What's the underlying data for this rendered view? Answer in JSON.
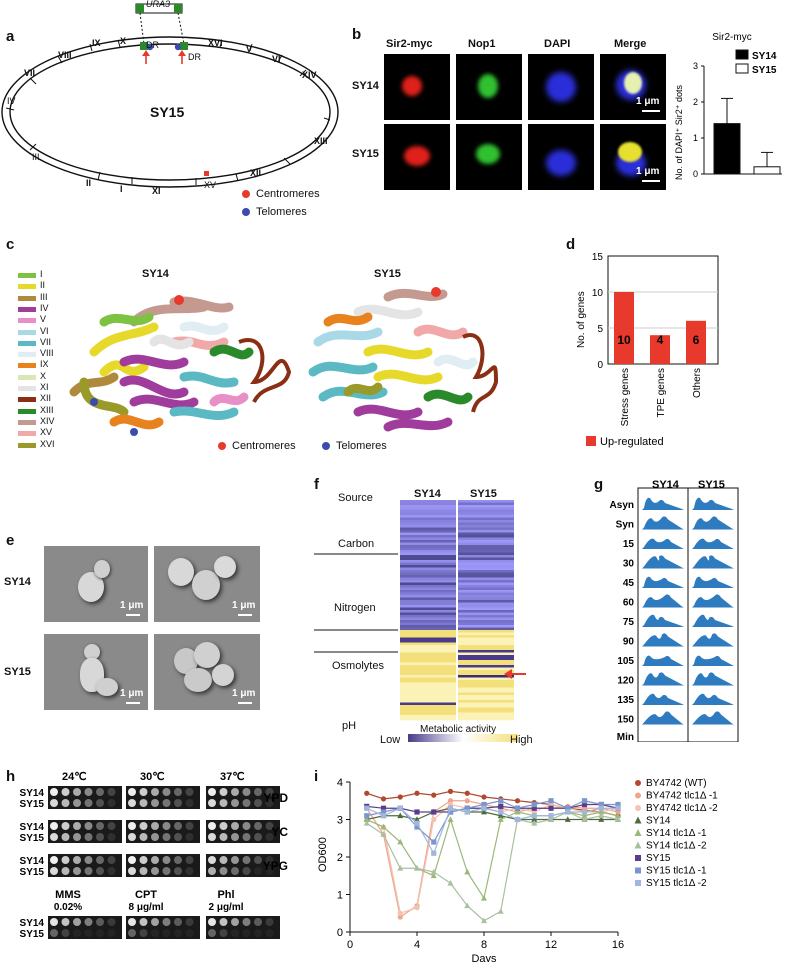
{
  "panels": {
    "a": "a",
    "b": "b",
    "c": "c",
    "d": "d",
    "e": "e",
    "f": "f",
    "g": "g",
    "h": "h",
    "i": "i"
  },
  "panel_a": {
    "center_label": "SY15",
    "insert_label": "URA3",
    "dr_left": "DR",
    "dr_right": "DR",
    "chromosomes": [
      "VII",
      "VIII",
      "IX",
      "X",
      "XVI",
      "V",
      "VI",
      "XIV",
      "IV",
      "III",
      "II",
      "I",
      "XI",
      "XV",
      "XII",
      "XIII"
    ],
    "legend": [
      {
        "label": "Centromeres",
        "color": "#e8392d"
      },
      {
        "label": "Telomeres",
        "color": "#3b4bb0"
      }
    ]
  },
  "panel_b": {
    "columns": [
      "Sir2-myc",
      "Nop1",
      "DAPI",
      "Merge"
    ],
    "rows": [
      "SY14",
      "SY15"
    ],
    "scale": "1 μm",
    "chart_data": {
      "type": "bar",
      "title": "Sir2-myc",
      "ylabel": "No. of DAPI⁺ Sir2⁺ dots",
      "categories": [
        "SY14",
        "SY15"
      ],
      "values": [
        1.4,
        0.2
      ],
      "errors": [
        0.7,
        0.4
      ],
      "ylim": [
        0,
        3
      ],
      "yticks": [
        "0",
        "1",
        "2",
        "3"
      ],
      "legend": [
        {
          "name": "SY14",
          "color": "#000000"
        },
        {
          "name": "SY15",
          "color": "#ffffff"
        }
      ]
    }
  },
  "panel_c": {
    "titles": [
      "SY14",
      "SY15"
    ],
    "legend": [
      {
        "label": "I",
        "color": "#7dc242"
      },
      {
        "label": "II",
        "color": "#e6d92a"
      },
      {
        "label": "III",
        "color": "#b08a3c"
      },
      {
        "label": "IV",
        "color": "#a03c9c"
      },
      {
        "label": "V",
        "color": "#e88fc8"
      },
      {
        "label": "VI",
        "color": "#a9d8e6"
      },
      {
        "label": "VII",
        "color": "#5ab9c2"
      },
      {
        "label": "VIII",
        "color": "#e0eef4"
      },
      {
        "label": "IX",
        "color": "#e8821e"
      },
      {
        "label": "X",
        "color": "#d6e8b4"
      },
      {
        "label": "XI",
        "color": "#e4e4e4"
      },
      {
        "label": "XII",
        "color": "#8a2e14"
      },
      {
        "label": "XIII",
        "color": "#2a8a2a"
      },
      {
        "label": "XIV",
        "color": "#c49a90"
      },
      {
        "label": "XV",
        "color": "#f0a8a8"
      },
      {
        "label": "XVI",
        "color": "#9a9a2a"
      }
    ],
    "legend_bottom": [
      {
        "label": "Centromeres",
        "color": "#e8392d"
      },
      {
        "label": "Telomeres",
        "color": "#3b4bb0"
      }
    ]
  },
  "panel_d": {
    "chart_data": {
      "type": "bar",
      "ylabel": "No. of  genes",
      "categories": [
        "Stress genes",
        "TPE genes",
        "Others"
      ],
      "values": [
        10,
        4,
        6
      ],
      "ylim": [
        0,
        15
      ],
      "yticks": [
        "0",
        "5",
        "10",
        "15"
      ],
      "legend": "Up-regulated",
      "color": "#e8392d"
    }
  },
  "panel_e": {
    "rows": [
      "SY14",
      "SY15"
    ],
    "scale": "1 μm"
  },
  "panel_f": {
    "columns": [
      "SY14",
      "SY15"
    ],
    "groups": [
      "Source",
      "Carbon",
      "Nitrogen",
      "Osmolytes",
      "pH"
    ],
    "scale_title": "Metabolic activity",
    "scale_low": "Low",
    "scale_high": "High"
  },
  "panel_g": {
    "columns": [
      "SY14",
      "SY15"
    ],
    "rows": [
      "Asyn",
      "Syn",
      "15",
      "30",
      "45",
      "60",
      "75",
      "90",
      "105",
      "120",
      "135",
      "150"
    ],
    "unit": "Min",
    "color": "#2e7bbf"
  },
  "panel_h": {
    "temps": [
      "24℃",
      "30℃",
      "37℃"
    ],
    "media": [
      "YPD",
      "YC",
      "YPG"
    ],
    "strains": [
      "SY14",
      "SY15"
    ],
    "drugs": [
      {
        "name": "MMS",
        "dose": "0.02%"
      },
      {
        "name": "CPT",
        "dose": "8 μg/ml"
      },
      {
        "name": "Phl",
        "dose": "2 μg/ml"
      }
    ]
  },
  "panel_i": {
    "chart_data": {
      "type": "line",
      "xlabel": "Days",
      "ylabel": "OD600",
      "xlim": [
        0,
        16
      ],
      "ylim": [
        0,
        4
      ],
      "xticks": [
        "0",
        "4",
        "8",
        "12",
        "16"
      ],
      "yticks": [
        "0",
        "1",
        "2",
        "3",
        "4"
      ],
      "series": [
        {
          "name": "BY4742 (WT)",
          "color": "#b0492e",
          "marker": "circle",
          "x": [
            1,
            2,
            3,
            4,
            5,
            6,
            7,
            8,
            9,
            10,
            11,
            12,
            13,
            14,
            15,
            16
          ],
          "y": [
            3.7,
            3.55,
            3.6,
            3.7,
            3.65,
            3.75,
            3.7,
            3.6,
            3.55,
            3.5,
            3.45,
            3.4,
            3.3,
            3.25,
            3.2,
            3.1
          ]
        },
        {
          "name": "BY4742 tlc1Δ -1",
          "color": "#f0a58a",
          "marker": "circle",
          "x": [
            1,
            2,
            3,
            4,
            5,
            6,
            7,
            8,
            9,
            10,
            11,
            12,
            13,
            14,
            15,
            16
          ],
          "y": [
            3.3,
            2.6,
            0.4,
            0.7,
            3.2,
            3.5,
            3.5,
            3.4,
            3.3,
            3.2,
            3.3,
            3.3,
            3.35,
            3.3,
            3.3,
            3.2
          ]
        },
        {
          "name": "BY4742 tlc1Δ -2",
          "color": "#f4c2b0",
          "marker": "circle",
          "x": [
            1,
            2,
            3,
            4,
            5,
            6,
            7,
            8,
            9,
            10,
            11,
            12,
            13,
            14,
            15,
            16
          ],
          "y": [
            3.0,
            2.8,
            0.5,
            0.65,
            3.0,
            3.4,
            3.3,
            3.3,
            3.2,
            3.3,
            3.2,
            3.4,
            3.3,
            3.2,
            3.2,
            3.3
          ]
        },
        {
          "name": "SY14",
          "color": "#4e6b3c",
          "marker": "triangle",
          "x": [
            1,
            2,
            3,
            4,
            5,
            6,
            7,
            8,
            9,
            10,
            11,
            12,
            13,
            14,
            15,
            16
          ],
          "y": [
            3.0,
            3.1,
            3.1,
            3.0,
            3.2,
            3.3,
            3.2,
            3.2,
            3.1,
            3.0,
            3.0,
            3.0,
            3.0,
            3.0,
            3.0,
            3.0
          ]
        },
        {
          "name": "SY14 tlc1Δ -1",
          "color": "#9ab87a",
          "marker": "triangle",
          "x": [
            1,
            2,
            3,
            4,
            5,
            6,
            7,
            8,
            9,
            10,
            11,
            12,
            13,
            14,
            15,
            16
          ],
          "y": [
            3.0,
            2.8,
            2.4,
            1.7,
            1.5,
            3.0,
            1.6,
            0.9,
            3.0,
            3.2,
            3.1,
            3.1,
            3.2,
            3.1,
            3.2,
            3.1
          ]
        },
        {
          "name": "SY14 tlc1Δ -2",
          "color": "#a8c0a0",
          "marker": "triangle",
          "x": [
            1,
            2,
            3,
            4,
            5,
            6,
            7,
            8,
            9,
            10,
            11,
            12,
            13,
            14,
            15,
            16
          ],
          "y": [
            2.9,
            2.6,
            1.7,
            1.7,
            1.6,
            1.3,
            0.7,
            0.3,
            0.55,
            3.0,
            2.9,
            3.0,
            3.2,
            3.0,
            3.1,
            3.0
          ]
        },
        {
          "name": "SY15",
          "color": "#5a3e8c",
          "marker": "square",
          "x": [
            1,
            2,
            3,
            4,
            5,
            6,
            7,
            8,
            9,
            10,
            11,
            12,
            13,
            14,
            15,
            16
          ],
          "y": [
            3.35,
            3.3,
            3.3,
            3.2,
            3.2,
            3.2,
            3.3,
            3.3,
            3.35,
            3.3,
            3.3,
            3.3,
            3.3,
            3.4,
            3.4,
            3.3
          ]
        },
        {
          "name": "SY15 tlc1Δ -1",
          "color": "#7a96cc",
          "marker": "square",
          "x": [
            1,
            2,
            3,
            4,
            5,
            6,
            7,
            8,
            9,
            10,
            11,
            12,
            13,
            14,
            15,
            16
          ],
          "y": [
            3.1,
            3.2,
            3.3,
            2.8,
            2.4,
            3.2,
            3.3,
            3.4,
            3.5,
            3.3,
            3.4,
            3.5,
            3.3,
            3.5,
            3.4,
            3.4
          ]
        },
        {
          "name": "SY15 tlc1Δ -2",
          "color": "#a2b6dc",
          "marker": "square",
          "x": [
            1,
            2,
            3,
            4,
            5,
            6,
            7,
            8,
            9,
            10,
            11,
            12,
            13,
            14,
            15,
            16
          ],
          "y": [
            3.3,
            3.1,
            3.3,
            2.9,
            2.1,
            3.3,
            3.2,
            3.3,
            3.2,
            3.0,
            3.1,
            3.1,
            3.2,
            3.2,
            3.3,
            3.3
          ]
        }
      ]
    }
  }
}
